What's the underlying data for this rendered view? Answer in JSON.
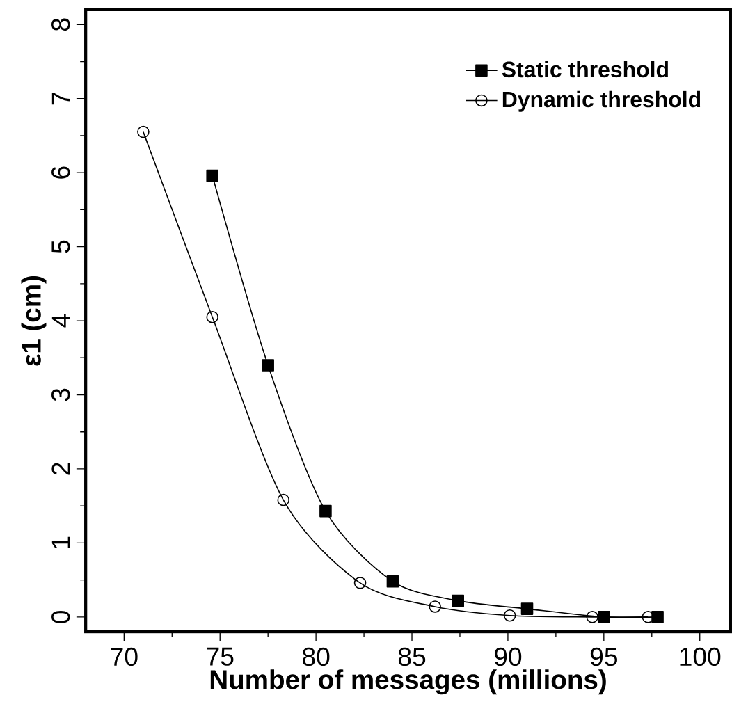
{
  "chart_data": {
    "type": "line",
    "xlabel": "Number of messages (millions)",
    "ylabel": "ε1 (cm)",
    "xlim": [
      68,
      101.6
    ],
    "ylim": [
      -0.2,
      8.2
    ],
    "xticks": [
      70,
      75,
      80,
      85,
      90,
      95,
      100
    ],
    "yticks": [
      0,
      1,
      2,
      3,
      4,
      5,
      6,
      7,
      8
    ],
    "legend": "top right",
    "line_style": "solid",
    "series": [
      {
        "name": "Static threshold",
        "color": "#000000",
        "marker": "square",
        "x": [
          74.6,
          77.5,
          80.5,
          84.0,
          87.4,
          91.0,
          95.0,
          97.8
        ],
        "values": [
          5.96,
          3.4,
          1.43,
          0.48,
          0.22,
          0.11,
          0.0,
          0.0
        ]
      },
      {
        "name": "Dynamic threshold",
        "color": "#000000",
        "marker": "circle",
        "x": [
          71.0,
          74.6,
          78.3,
          82.3,
          86.2,
          90.1,
          94.4,
          97.3
        ],
        "values": [
          6.55,
          4.05,
          1.58,
          0.46,
          0.14,
          0.02,
          0.0,
          0.0
        ]
      }
    ]
  }
}
